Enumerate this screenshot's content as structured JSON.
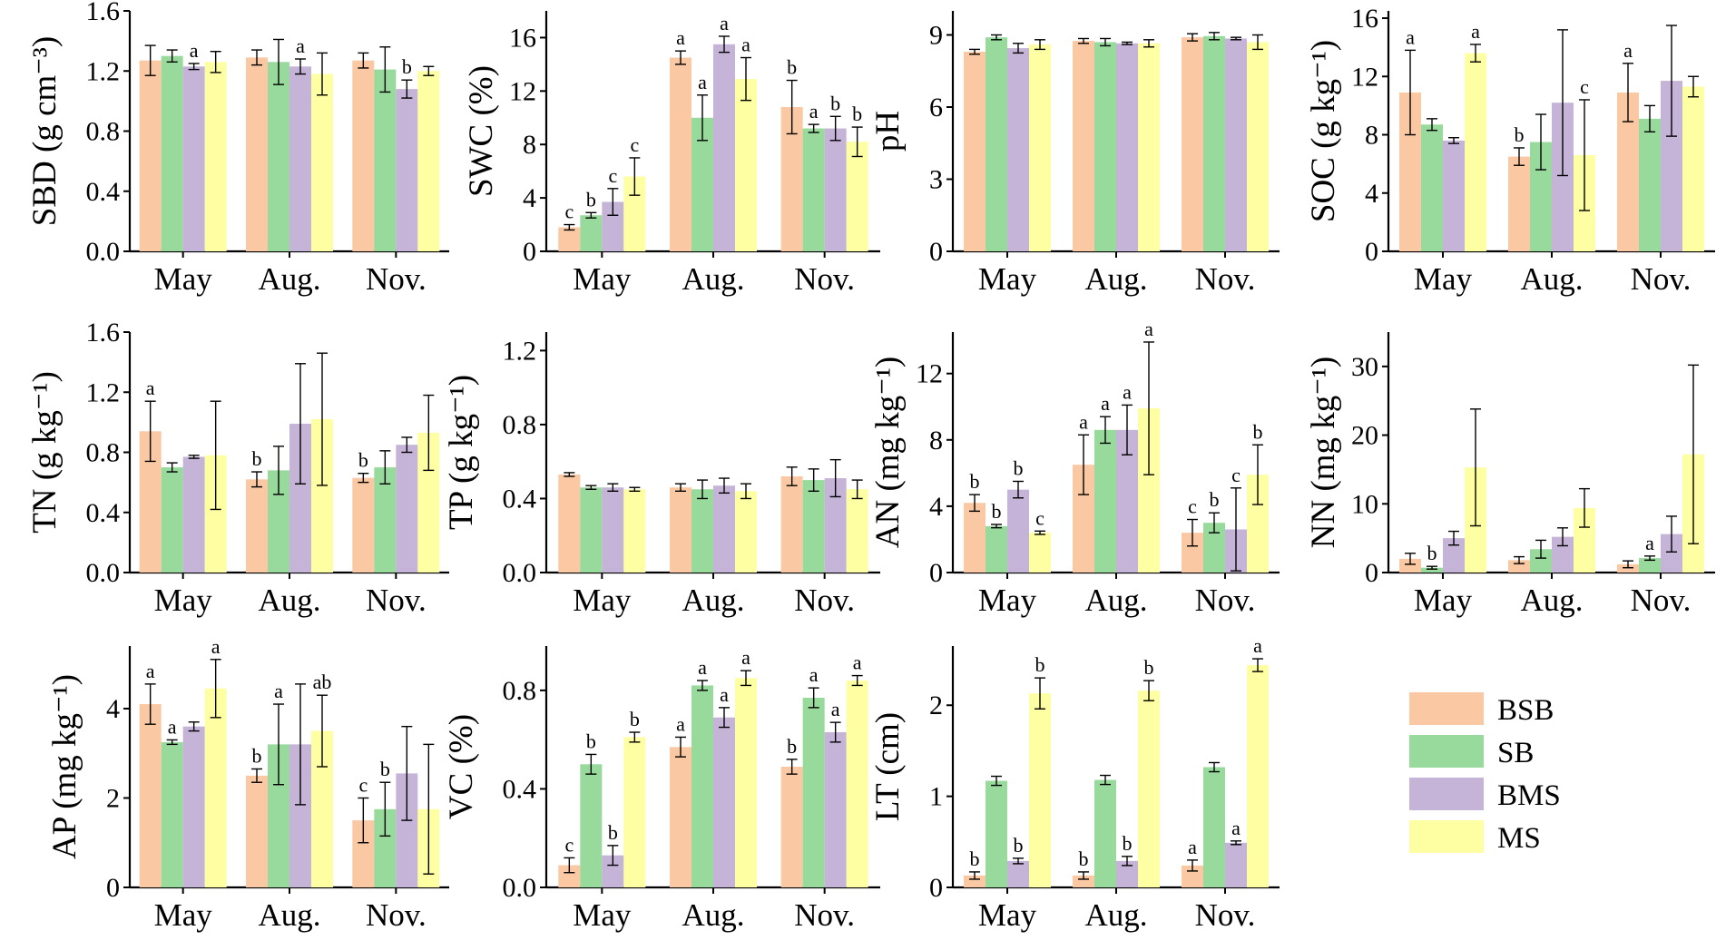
{
  "legend": {
    "items": [
      {
        "name": "BSB",
        "color": "#fac8a2"
      },
      {
        "name": "SB",
        "color": "#98da9c"
      },
      {
        "name": "BMS",
        "color": "#c5b4d8"
      },
      {
        "name": "MS",
        "color": "#fefea2"
      }
    ]
  },
  "chart_data": [
    {
      "type": "bar",
      "id": "SBD",
      "ylabel": "SBD (g cm⁻³)",
      "ylim": [
        0,
        1.6
      ],
      "yticks": [
        "0.0",
        "0.4",
        "0.8",
        "1.2",
        "1.6"
      ],
      "categories": [
        "May",
        "Aug.",
        "Nov."
      ],
      "series": [
        {
          "name": "BSB",
          "values": [
            1.27,
            1.29,
            1.27
          ],
          "errors": [
            0.1,
            0.05,
            0.05
          ],
          "labels": [
            "",
            "",
            ""
          ]
        },
        {
          "name": "SB",
          "values": [
            1.3,
            1.26,
            1.21
          ],
          "errors": [
            0.04,
            0.15,
            0.15
          ],
          "labels": [
            "",
            "",
            ""
          ]
        },
        {
          "name": "BMS",
          "values": [
            1.23,
            1.23,
            1.08
          ],
          "errors": [
            0.02,
            0.05,
            0.06
          ],
          "labels": [
            "a",
            "a",
            "b"
          ]
        },
        {
          "name": "MS",
          "values": [
            1.26,
            1.18,
            1.2
          ],
          "errors": [
            0.07,
            0.14,
            0.03
          ],
          "labels": [
            "",
            "",
            ""
          ]
        }
      ]
    },
    {
      "type": "bar",
      "id": "SWC",
      "ylabel": "SWC (%)",
      "ylim": [
        0,
        18
      ],
      "yticks": [
        "0",
        "4",
        "8",
        "12",
        "16"
      ],
      "categories": [
        "May",
        "Aug.",
        "Nov."
      ],
      "series": [
        {
          "name": "BSB",
          "values": [
            1.8,
            14.5,
            10.8
          ],
          "errors": [
            0.2,
            0.5,
            2.0
          ],
          "labels": [
            "c",
            "a",
            "b"
          ]
        },
        {
          "name": "SB",
          "values": [
            2.7,
            10.0,
            9.2
          ],
          "errors": [
            0.2,
            1.7,
            0.3
          ],
          "labels": [
            "b",
            "a",
            "a"
          ]
        },
        {
          "name": "BMS",
          "values": [
            3.7,
            15.5,
            9.2
          ],
          "errors": [
            1.0,
            0.6,
            0.9
          ],
          "labels": [
            "c",
            "a",
            "b"
          ]
        },
        {
          "name": "MS",
          "values": [
            5.6,
            12.9,
            8.2
          ],
          "errors": [
            1.4,
            1.6,
            1.1
          ],
          "labels": [
            "c",
            "a",
            "b"
          ]
        }
      ]
    },
    {
      "type": "bar",
      "id": "pH",
      "ylabel": "pH",
      "ylim": [
        0,
        10
      ],
      "yticks": [
        "0",
        "3",
        "6",
        "9"
      ],
      "categories": [
        "May",
        "Aug.",
        "Nov."
      ],
      "series": [
        {
          "name": "BSB",
          "values": [
            8.3,
            8.75,
            8.9
          ],
          "errors": [
            0.1,
            0.1,
            0.15
          ],
          "labels": [
            "",
            "",
            ""
          ]
        },
        {
          "name": "SB",
          "values": [
            8.9,
            8.7,
            8.95
          ],
          "errors": [
            0.1,
            0.15,
            0.15
          ],
          "labels": [
            "",
            "",
            ""
          ]
        },
        {
          "name": "BMS",
          "values": [
            8.45,
            8.65,
            8.85
          ],
          "errors": [
            0.2,
            0.05,
            0.05
          ],
          "labels": [
            "",
            "",
            ""
          ]
        },
        {
          "name": "MS",
          "values": [
            8.6,
            8.65,
            8.7
          ],
          "errors": [
            0.2,
            0.15,
            0.3
          ],
          "labels": [
            "",
            "",
            ""
          ]
        }
      ]
    },
    {
      "type": "bar",
      "id": "SOC",
      "ylabel": "SOC (g kg⁻¹)",
      "ylim": [
        0,
        16.5
      ],
      "yticks": [
        "0",
        "4",
        "8",
        "12",
        "16"
      ],
      "categories": [
        "May",
        "Aug.",
        "Nov."
      ],
      "series": [
        {
          "name": "BSB",
          "values": [
            10.9,
            6.5,
            10.9
          ],
          "errors": [
            2.9,
            0.6,
            2.0
          ],
          "labels": [
            "a",
            "b",
            "a"
          ]
        },
        {
          "name": "SB",
          "values": [
            8.7,
            7.5,
            9.1
          ],
          "errors": [
            0.4,
            1.9,
            0.9
          ],
          "labels": [
            "",
            "",
            ""
          ]
        },
        {
          "name": "BMS",
          "values": [
            7.6,
            10.2,
            11.7
          ],
          "errors": [
            0.2,
            5.0,
            3.8
          ],
          "labels": [
            "",
            "",
            ""
          ]
        },
        {
          "name": "MS",
          "values": [
            13.6,
            6.6,
            11.3
          ],
          "errors": [
            0.6,
            3.8,
            0.7
          ],
          "labels": [
            "a",
            "c",
            ""
          ]
        }
      ]
    },
    {
      "type": "bar",
      "id": "TN",
      "ylabel": "TN (g kg⁻¹)",
      "ylim": [
        0,
        1.6
      ],
      "yticks": [
        "0.0",
        "0.4",
        "0.8",
        "1.2",
        "1.6"
      ],
      "categories": [
        "May",
        "Aug.",
        "Nov."
      ],
      "series": [
        {
          "name": "BSB",
          "values": [
            0.94,
            0.62,
            0.63
          ],
          "errors": [
            0.2,
            0.05,
            0.03
          ],
          "labels": [
            "a",
            "b",
            "b"
          ]
        },
        {
          "name": "SB",
          "values": [
            0.7,
            0.68,
            0.7
          ],
          "errors": [
            0.03,
            0.16,
            0.11
          ],
          "labels": [
            "",
            "",
            ""
          ]
        },
        {
          "name": "BMS",
          "values": [
            0.77,
            0.99,
            0.85
          ],
          "errors": [
            0.01,
            0.4,
            0.05
          ],
          "labels": [
            "",
            "",
            ""
          ]
        },
        {
          "name": "MS",
          "values": [
            0.78,
            1.02,
            0.93
          ],
          "errors": [
            0.36,
            0.44,
            0.25
          ],
          "labels": [
            "",
            "",
            ""
          ]
        }
      ]
    },
    {
      "type": "bar",
      "id": "TP",
      "ylabel": "TP (g kg⁻¹)",
      "ylim": [
        0,
        1.3
      ],
      "yticks": [
        "0.0",
        "0.4",
        "0.8",
        "1.2"
      ],
      "categories": [
        "May",
        "Aug.",
        "Nov."
      ],
      "series": [
        {
          "name": "BSB",
          "values": [
            0.53,
            0.46,
            0.52
          ],
          "errors": [
            0.01,
            0.02,
            0.05
          ],
          "labels": [
            "",
            "",
            ""
          ]
        },
        {
          "name": "SB",
          "values": [
            0.46,
            0.45,
            0.5
          ],
          "errors": [
            0.01,
            0.05,
            0.06
          ],
          "labels": [
            "",
            "",
            ""
          ]
        },
        {
          "name": "BMS",
          "values": [
            0.46,
            0.47,
            0.51
          ],
          "errors": [
            0.02,
            0.04,
            0.1
          ],
          "labels": [
            "",
            "",
            ""
          ]
        },
        {
          "name": "MS",
          "values": [
            0.45,
            0.44,
            0.45
          ],
          "errors": [
            0.01,
            0.04,
            0.05
          ],
          "labels": [
            "",
            "",
            ""
          ]
        }
      ]
    },
    {
      "type": "bar",
      "id": "AN",
      "ylabel": "AN (mg kg⁻¹)",
      "ylim": [
        0,
        14.5
      ],
      "yticks": [
        "0",
        "4",
        "8",
        "12"
      ],
      "categories": [
        "May",
        "Aug.",
        "Nov."
      ],
      "series": [
        {
          "name": "BSB",
          "values": [
            4.2,
            6.5,
            2.4
          ],
          "errors": [
            0.5,
            1.8,
            0.8
          ],
          "labels": [
            "b",
            "a",
            "c"
          ]
        },
        {
          "name": "SB",
          "values": [
            2.8,
            8.6,
            3.0
          ],
          "errors": [
            0.1,
            0.8,
            0.6
          ],
          "labels": [
            "b",
            "a",
            "b"
          ]
        },
        {
          "name": "BMS",
          "values": [
            5.0,
            8.6,
            2.6
          ],
          "errors": [
            0.5,
            1.5,
            2.5
          ],
          "labels": [
            "b",
            "a",
            "c"
          ]
        },
        {
          "name": "MS",
          "values": [
            2.4,
            9.9,
            5.9
          ],
          "errors": [
            0.1,
            4.0,
            1.8
          ],
          "labels": [
            "c",
            "a",
            "b"
          ]
        }
      ]
    },
    {
      "type": "bar",
      "id": "NN",
      "ylabel": "NN (mg kg⁻¹)",
      "ylim": [
        0,
        35
      ],
      "yticks": [
        "0",
        "10",
        "20",
        "30"
      ],
      "categories": [
        "May",
        "Aug.",
        "Nov."
      ],
      "series": [
        {
          "name": "BSB",
          "values": [
            2.0,
            1.8,
            1.2
          ],
          "errors": [
            0.8,
            0.5,
            0.5
          ],
          "labels": [
            "",
            "",
            ""
          ]
        },
        {
          "name": "SB",
          "values": [
            0.7,
            3.4,
            2.1
          ],
          "errors": [
            0.2,
            1.3,
            0.3
          ],
          "labels": [
            "b",
            "",
            "a"
          ]
        },
        {
          "name": "BMS",
          "values": [
            5.0,
            5.2,
            5.6
          ],
          "errors": [
            1.0,
            1.3,
            2.6
          ],
          "labels": [
            "",
            "",
            ""
          ]
        },
        {
          "name": "MS",
          "values": [
            15.3,
            9.4,
            17.2
          ],
          "errors": [
            8.5,
            2.8,
            13.0
          ],
          "labels": [
            "",
            "",
            ""
          ]
        }
      ]
    },
    {
      "type": "bar",
      "id": "AP",
      "ylabel": "AP (mg kg⁻¹)",
      "ylim": [
        0,
        5.4
      ],
      "yticks": [
        "0",
        "2",
        "4"
      ],
      "categories": [
        "May",
        "Aug.",
        "Nov."
      ],
      "series": [
        {
          "name": "BSB",
          "values": [
            4.1,
            2.5,
            1.5
          ],
          "errors": [
            0.45,
            0.15,
            0.5
          ],
          "labels": [
            "a",
            "b",
            "c"
          ]
        },
        {
          "name": "SB",
          "values": [
            3.25,
            3.2,
            1.75
          ],
          "errors": [
            0.05,
            0.9,
            0.6
          ],
          "labels": [
            "a",
            "a",
            "b"
          ]
        },
        {
          "name": "BMS",
          "values": [
            3.6,
            3.2,
            2.55
          ],
          "errors": [
            0.1,
            1.35,
            1.05
          ],
          "labels": [
            "",
            "",
            ""
          ]
        },
        {
          "name": "MS",
          "values": [
            4.45,
            3.5,
            1.75
          ],
          "errors": [
            0.65,
            0.8,
            1.45
          ],
          "labels": [
            "a",
            "ab",
            ""
          ]
        }
      ]
    },
    {
      "type": "bar",
      "id": "VC",
      "ylabel": "VC (%)",
      "ylim": [
        0,
        0.98
      ],
      "yticks": [
        "0.0",
        "0.4",
        "0.8"
      ],
      "categories": [
        "May",
        "Aug.",
        "Nov."
      ],
      "series": [
        {
          "name": "BSB",
          "values": [
            0.09,
            0.57,
            0.49
          ],
          "errors": [
            0.03,
            0.04,
            0.03
          ],
          "labels": [
            "c",
            "a",
            "b"
          ]
        },
        {
          "name": "SB",
          "values": [
            0.5,
            0.82,
            0.77
          ],
          "errors": [
            0.04,
            0.02,
            0.04
          ],
          "labels": [
            "b",
            "a",
            "a"
          ]
        },
        {
          "name": "BMS",
          "values": [
            0.13,
            0.69,
            0.63
          ],
          "errors": [
            0.04,
            0.04,
            0.04
          ],
          "labels": [
            "b",
            "a",
            "a"
          ]
        },
        {
          "name": "MS",
          "values": [
            0.61,
            0.85,
            0.84
          ],
          "errors": [
            0.02,
            0.03,
            0.02
          ],
          "labels": [
            "b",
            "a",
            "a"
          ]
        }
      ]
    },
    {
      "type": "bar",
      "id": "LT",
      "ylabel": "LT (cm)",
      "ylim": [
        0,
        2.65
      ],
      "yticks": [
        "0",
        "1",
        "2"
      ],
      "categories": [
        "May",
        "Aug.",
        "Nov."
      ],
      "series": [
        {
          "name": "BSB",
          "values": [
            0.13,
            0.13,
            0.24
          ],
          "errors": [
            0.04,
            0.04,
            0.06
          ],
          "labels": [
            "b",
            "b",
            "a"
          ]
        },
        {
          "name": "SB",
          "values": [
            1.17,
            1.18,
            1.32
          ],
          "errors": [
            0.05,
            0.05,
            0.05
          ],
          "labels": [
            "",
            "",
            ""
          ]
        },
        {
          "name": "BMS",
          "values": [
            0.29,
            0.29,
            0.49
          ],
          "errors": [
            0.03,
            0.05,
            0.02
          ],
          "labels": [
            "b",
            "b",
            "a"
          ]
        },
        {
          "name": "MS",
          "values": [
            2.13,
            2.16,
            2.44
          ],
          "errors": [
            0.17,
            0.11,
            0.07
          ],
          "labels": [
            "b",
            "b",
            "a"
          ]
        }
      ]
    }
  ]
}
